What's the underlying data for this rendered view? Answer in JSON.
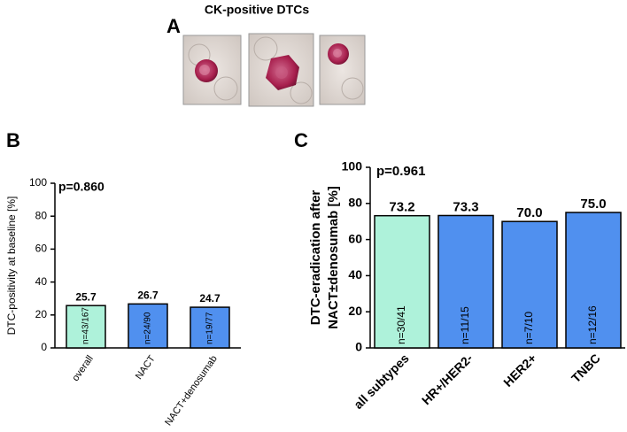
{
  "image_caption": "CK-positive DTCs",
  "panel_labels": [
    "A",
    "B",
    "C"
  ],
  "chart_data": [
    {
      "type": "bar",
      "y_label": "DTC-positivity at baseline [%]",
      "annotation": "p=0.860",
      "categories": [
        "overall",
        "NACT",
        "NACT+denosumab"
      ],
      "values": [
        25.7,
        26.7,
        24.7
      ],
      "inner_labels": [
        "n=43/167",
        "n=24/90",
        "n=19/77"
      ],
      "colors": [
        "#aef2da",
        "#5090ef",
        "#5090ef"
      ],
      "ylim": [
        0,
        100
      ],
      "yticks": [
        0,
        20,
        40,
        60,
        80,
        100
      ]
    },
    {
      "type": "bar",
      "y_label": [
        "DTC-eradication after",
        "NACT±denosumab [%]"
      ],
      "annotation": "p=0.961",
      "categories": [
        "all subtypes",
        "HR+/HER2-",
        "HER2+",
        "TNBC"
      ],
      "values": [
        73.2,
        73.3,
        70.0,
        75.0
      ],
      "value_labels": [
        "73.2",
        "73.3",
        "70.0",
        "75.0"
      ],
      "inner_labels": [
        "n=30/41",
        "n=11/15",
        "n=7/10",
        "n=12/16"
      ],
      "colors": [
        "#aef2da",
        "#5090ef",
        "#5090ef",
        "#5090ef"
      ],
      "ylim": [
        0,
        100
      ],
      "yticks": [
        0,
        20,
        40,
        60,
        80,
        100
      ]
    }
  ]
}
